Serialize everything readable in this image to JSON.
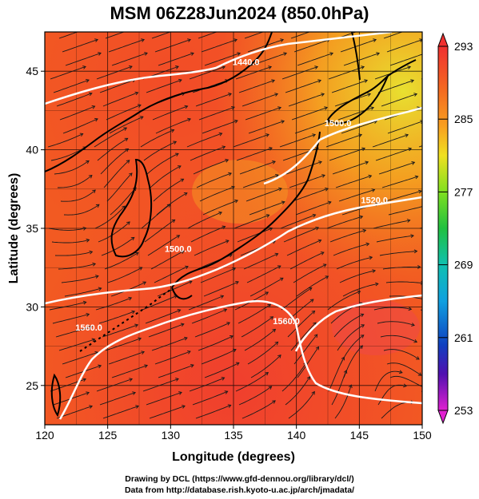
{
  "title": "MSM 06Z28Jun2024 (850.0hPa)",
  "x_axis": {
    "label": "Longitude (degrees)",
    "range": [
      120,
      150
    ],
    "ticks": [
      "120",
      "125",
      "130",
      "135",
      "140",
      "145",
      "150"
    ]
  },
  "y_axis": {
    "label": "Latitude  (degrees)",
    "range": [
      22.5,
      47.5
    ],
    "ticks": [
      "25",
      "30",
      "35",
      "40",
      "45"
    ]
  },
  "colorbar": {
    "range": [
      253,
      293
    ],
    "ticks": [
      "293",
      "285",
      "277",
      "269",
      "261",
      "253"
    ]
  },
  "contour_labels": [
    {
      "text": "1440.0",
      "lon": 136,
      "lat": 45.4
    },
    {
      "text": "1500.0",
      "lon": 143.3,
      "lat": 41.5
    },
    {
      "text": "1500.0",
      "lon": 130.6,
      "lat": 33.5
    },
    {
      "text": "1520.0",
      "lon": 146.2,
      "lat": 36.6
    },
    {
      "text": "1560.0",
      "lon": 123.5,
      "lat": 28.5
    },
    {
      "text": "1560.0",
      "lon": 139.2,
      "lat": 28.9
    }
  ],
  "footer": {
    "line1": "Drawing by DCL (https://www.gfd-dennou.org/library/dcl/)",
    "line2": "Data from http://database.rish.kyoto-u.ac.jp/arch/jmadata/"
  }
}
